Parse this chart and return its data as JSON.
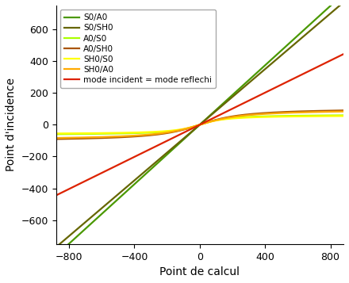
{
  "title": "",
  "xlabel": "Point de calcul",
  "ylabel": "Point d'incidence",
  "xlim": [
    -880,
    880
  ],
  "ylim": [
    -750,
    750
  ],
  "xticks": [
    -800,
    -400,
    0,
    400,
    800
  ],
  "yticks": [
    -600,
    -400,
    -200,
    0,
    200,
    400,
    600
  ],
  "curves": [
    {
      "label": "S0/A0",
      "color": "#4a9900",
      "lw": 1.6,
      "kind": "steep",
      "slope": 0.935
    },
    {
      "label": "S0/SH0",
      "color": "#666600",
      "lw": 1.6,
      "kind": "steep",
      "slope": 0.875
    },
    {
      "label": "A0/S0",
      "color": "#aaff00",
      "lw": 1.6,
      "kind": "flat",
      "asymptote": 65,
      "scale": 120
    },
    {
      "label": "A0/SH0",
      "color": "#aa5500",
      "lw": 1.6,
      "kind": "flat",
      "asymptote": 105,
      "scale": 200
    },
    {
      "label": "SH0/S0",
      "color": "#ffff00",
      "lw": 1.6,
      "kind": "flat",
      "asymptote": 60,
      "scale": 120
    },
    {
      "label": "SH0/A0",
      "color": "#ffaa00",
      "lw": 1.6,
      "kind": "flat",
      "asymptote": 97,
      "scale": 200
    },
    {
      "label": "mode incident = mode reflechi",
      "color": "#dd2200",
      "lw": 1.6,
      "kind": "linear",
      "slope": 0.505
    }
  ],
  "background_color": "#ffffff",
  "legend_fontsize": 7.5,
  "axis_fontsize": 10,
  "tick_fontsize": 9
}
